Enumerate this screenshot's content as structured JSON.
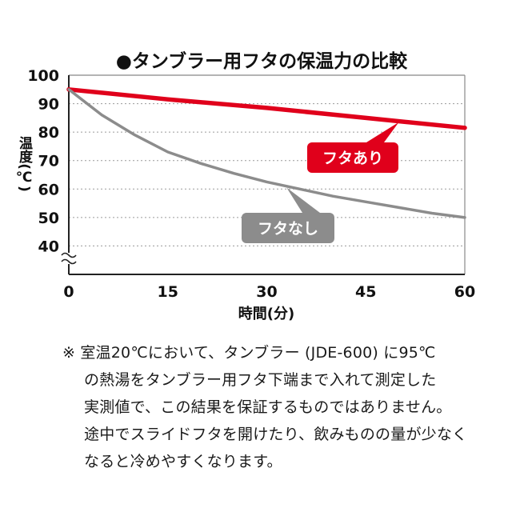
{
  "chart_data": {
    "type": "line",
    "title": "●タンブラー用フタの保温力の比較",
    "xlabel": "時間(分)",
    "ylabel": "温度(℃)",
    "x_ticks": [
      0,
      15,
      30,
      45,
      60
    ],
    "y_ticks": [
      40,
      50,
      60,
      70,
      80,
      90,
      100
    ],
    "xlim": [
      0,
      60
    ],
    "ylim": [
      30,
      100
    ],
    "axis_break": true,
    "grid": "horizontal-dashed",
    "series": [
      {
        "name": "フタあり",
        "color": "#e0001b",
        "x": [
          0,
          15,
          30,
          45,
          60
        ],
        "y": [
          95,
          91.5,
          88.5,
          85,
          81.5
        ]
      },
      {
        "name": "フタなし",
        "color": "#8c8c8c",
        "x": [
          0,
          5,
          10,
          15,
          20,
          25,
          30,
          35,
          40,
          45,
          50,
          55,
          60
        ],
        "y": [
          95,
          86,
          79,
          73,
          69,
          65.5,
          62.5,
          60,
          57.5,
          55.5,
          53.5,
          51.5,
          50
        ]
      }
    ],
    "labels": {
      "with_lid": "フタあり",
      "without_lid": "フタなし"
    }
  },
  "note": {
    "lines": [
      "※ 室温20℃において、タンブラー (JDE-600) に95℃",
      "の熱湯をタンブラー用フタ下端まで入れて測定した",
      "実測値で、この結果を保証するものではありません。",
      "途中でスライドフタを開けたり、飲みものの量が少なく",
      "なると冷めやすくなります。"
    ]
  }
}
